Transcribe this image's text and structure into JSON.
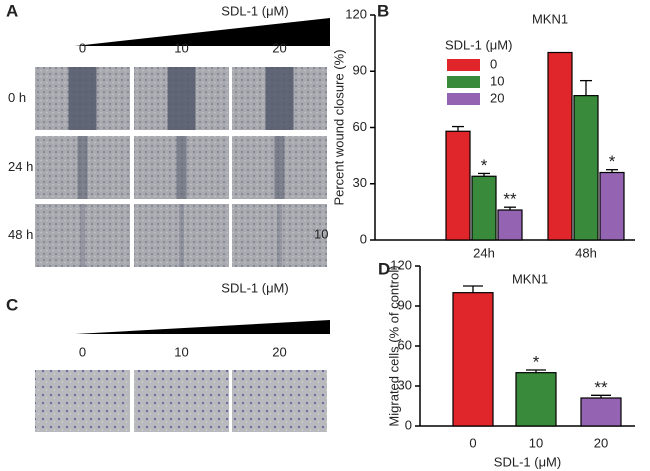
{
  "panel_a": {
    "letter": "A",
    "dose_label": "SDL-1 (μM)",
    "columns": [
      "0",
      "10",
      "20"
    ],
    "rows": [
      "0 h",
      "24 h",
      "48 h"
    ],
    "stray_label": "10"
  },
  "panel_c": {
    "letter": "C",
    "dose_label": "SDL-1 (μM)",
    "columns": [
      "0",
      "10",
      "20"
    ]
  },
  "chart_data": [
    {
      "letter": "B",
      "type": "grouped-bar",
      "title": "MKN1",
      "ylabel": "Percent wound closure (%)",
      "legend_title": "SDL-1 (μM)",
      "legend": "upper-left",
      "categories": [
        "24h",
        "48h"
      ],
      "ylim": [
        0,
        120
      ],
      "yticks": [
        0,
        30,
        60,
        90,
        120
      ],
      "series": [
        {
          "name": "0",
          "color": "#e0262b",
          "values": [
            58,
            100
          ],
          "errors": [
            2.5,
            0
          ],
          "significance": [
            null,
            null
          ]
        },
        {
          "name": "10",
          "color": "#3a8a3c",
          "values": [
            34,
            77
          ],
          "errors": [
            1.5,
            8
          ],
          "significance": [
            "*",
            null
          ]
        },
        {
          "name": "20",
          "color": "#9463b2",
          "values": [
            16,
            36
          ],
          "errors": [
            1.5,
            1.5
          ],
          "significance": [
            "**",
            "*"
          ]
        }
      ]
    },
    {
      "letter": "D",
      "type": "bar",
      "title": "MKN1",
      "ylabel": "Migrated cells (% of control)",
      "xlabel": "SDL-1 (μM)",
      "categories": [
        "0",
        "10",
        "20"
      ],
      "values": [
        100,
        40,
        21
      ],
      "errors": [
        5,
        2,
        2
      ],
      "colors": [
        "#e0262b",
        "#3a8a3c",
        "#9463b2"
      ],
      "significance": [
        null,
        "*",
        "**"
      ],
      "ylim": [
        0,
        120
      ],
      "yticks": [
        0,
        30,
        60,
        90,
        120
      ]
    }
  ]
}
